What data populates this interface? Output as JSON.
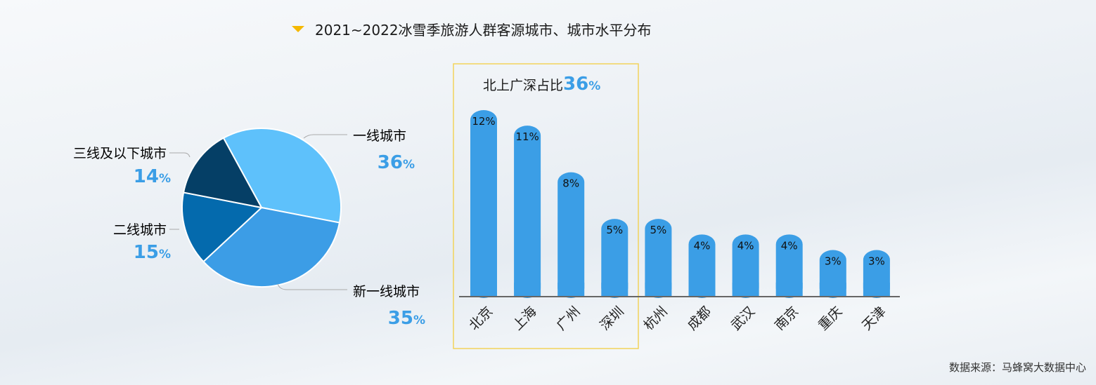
{
  "title": "2021~2022冰雪季旅游人群客源城市、城市水平分布",
  "source": "数据来源：马蜂窝大数据中心",
  "colors": {
    "accent": "#3b9ee6",
    "title_marker": "#f5b800",
    "highlight_box": "#f2d35b"
  },
  "chart_data": [
    {
      "type": "pie",
      "slices": [
        {
          "label": "一线城市",
          "value": 36,
          "value_label": "36",
          "unit": "%",
          "color": "#5ec1fb"
        },
        {
          "label": "新一线城市",
          "value": 35,
          "value_label": "35",
          "unit": "%",
          "color": "#3c9de6"
        },
        {
          "label": "二线城市",
          "value": 15,
          "value_label": "15",
          "unit": "%",
          "color": "#046aad"
        },
        {
          "label": "三线及以下城市",
          "value": 14,
          "value_label": "14",
          "unit": "%",
          "color": "#053f66"
        }
      ]
    },
    {
      "type": "bar",
      "annotation": {
        "text": "北上广深占比",
        "value": "36",
        "unit": "%"
      },
      "categories": [
        "北京",
        "上海",
        "广州",
        "深圳",
        "杭州",
        "成都",
        "武汉",
        "南京",
        "重庆",
        "天津"
      ],
      "values": [
        12,
        11,
        8,
        5,
        5,
        4,
        4,
        4,
        3,
        3
      ],
      "data_labels": [
        "12%",
        "11%",
        "8%",
        "5%",
        "5%",
        "4%",
        "4%",
        "4%",
        "3%",
        "3%"
      ],
      "highlighted_categories": [
        "北京",
        "上海",
        "广州",
        "深圳"
      ],
      "bar_color": "#3b9ee6",
      "ylim": [
        0,
        12.5
      ]
    }
  ]
}
